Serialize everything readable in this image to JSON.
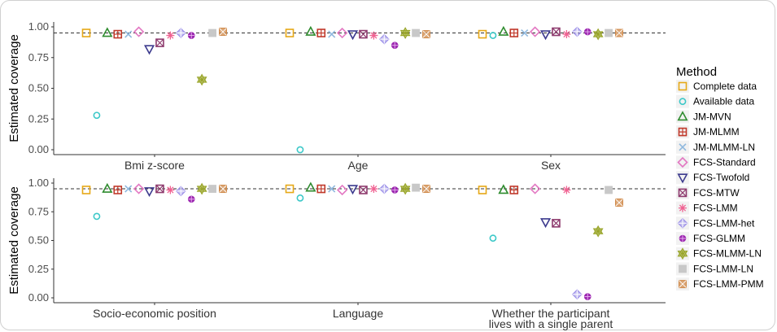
{
  "chart_data": {
    "type": "scatter",
    "ylabel": "Estimated coverage",
    "ylim": [
      0,
      1
    ],
    "yticks": [
      "0.00",
      "0.25",
      "0.50",
      "0.75",
      "1.00"
    ],
    "reference_line": 0.95,
    "legend": {
      "title": "Method",
      "placement": "right",
      "entries": [
        {
          "name": "Complete data",
          "color": "#E6A817",
          "shape": "square-open"
        },
        {
          "name": "Available data",
          "color": "#3CC8C8",
          "shape": "circle-open"
        },
        {
          "name": "JM-MVN",
          "color": "#2E8B2E",
          "shape": "triangle-open"
        },
        {
          "name": "JM-MLMM",
          "color": "#C0392B",
          "shape": "square-cross"
        },
        {
          "name": "JM-MLMM-LN",
          "color": "#8FB8DE",
          "shape": "x"
        },
        {
          "name": "FCS-Standard",
          "color": "#E377C2",
          "shape": "diamond-open"
        },
        {
          "name": "FCS-Twofold",
          "color": "#3D3B8E",
          "shape": "triangle-down-open"
        },
        {
          "name": "FCS-MTW",
          "color": "#8E3B6E",
          "shape": "square-x"
        },
        {
          "name": "FCS-LMM",
          "color": "#F06292",
          "shape": "asterisk"
        },
        {
          "name": "FCS-LMM-het",
          "color": "#9B8FE8",
          "shape": "diamond-plus"
        },
        {
          "name": "FCS-GLMM",
          "color": "#9C27B0",
          "shape": "circle-plus"
        },
        {
          "name": "FCS-MLMM-LN",
          "color": "#9AA62B",
          "shape": "star-of-david"
        },
        {
          "name": "FCS-LMM-LN",
          "color": "#C8C8C8",
          "shape": "square-filled"
        },
        {
          "name": "FCS-LMM-PMM",
          "color": "#D08A4A",
          "shape": "square-x-filled"
        }
      ]
    },
    "panels": [
      {
        "categories": [
          "Bmi z-score",
          "Age",
          "Sex"
        ],
        "values": {
          "Bmi z-score": [
            0.95,
            0.28,
            0.95,
            0.94,
            0.94,
            0.96,
            0.82,
            0.87,
            0.93,
            0.95,
            0.93,
            0.57,
            0.95,
            0.96
          ],
          "Age": [
            0.95,
            0.0,
            0.96,
            0.95,
            0.94,
            0.95,
            0.94,
            0.94,
            0.93,
            0.9,
            0.85,
            0.95,
            0.95,
            0.94
          ],
          "Sex": [
            0.94,
            0.93,
            0.96,
            0.95,
            0.95,
            0.96,
            0.94,
            0.96,
            0.94,
            0.96,
            0.96,
            0.94,
            0.95,
            0.95
          ]
        }
      },
      {
        "categories": [
          "Socio-economic position",
          "Language",
          "Whether the participant lives with a single parent"
        ],
        "category_lines": [
          [
            "Socio-economic position"
          ],
          [
            "Language"
          ],
          [
            "Whether the participant",
            "lives with a single parent"
          ]
        ],
        "values": {
          "Socio-economic position": [
            0.94,
            0.71,
            0.95,
            0.94,
            0.95,
            0.95,
            0.93,
            0.95,
            0.94,
            0.93,
            0.86,
            0.95,
            0.95,
            0.95
          ],
          "Language": [
            0.95,
            0.87,
            0.96,
            0.95,
            0.95,
            0.94,
            0.95,
            0.94,
            0.95,
            0.95,
            0.94,
            0.95,
            0.96,
            0.95
          ],
          "Whether the participant lives with a single parent": [
            0.94,
            0.52,
            0.94,
            0.94,
            null,
            0.95,
            0.66,
            0.65,
            0.94,
            0.03,
            0.01,
            0.58,
            0.94,
            0.83
          ]
        }
      }
    ]
  }
}
